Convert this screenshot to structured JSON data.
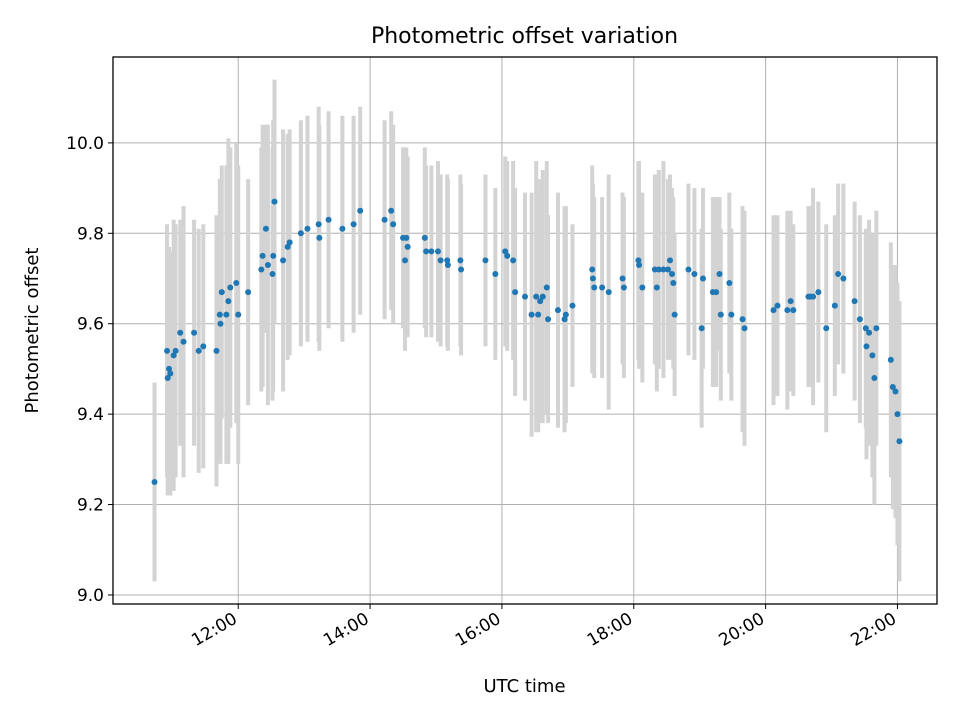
{
  "chart_data": {
    "type": "scatter",
    "title": "Photometric offset variation",
    "xlabel": "UTC time",
    "ylabel": "Photometric offset",
    "x_unit": "hour",
    "xlim": [
      10.1,
      22.6
    ],
    "ylim": [
      8.98,
      10.19
    ],
    "x_ticks": [
      12,
      14,
      16,
      18,
      20,
      22
    ],
    "x_tick_labels": [
      "12:00",
      "14:00",
      "16:00",
      "18:00",
      "20:00",
      "22:00"
    ],
    "y_ticks": [
      9.0,
      9.2,
      9.4,
      9.6,
      9.8,
      10.0
    ],
    "y_tick_labels": [
      "9.0",
      "9.2",
      "9.4",
      "9.6",
      "9.8",
      "10.0"
    ],
    "grid": true,
    "point_color": "#1f77b4",
    "errorbar_color": "#d3d3d3",
    "points": [
      {
        "x": 10.73,
        "y": 9.25,
        "err": 0.22
      },
      {
        "x": 10.92,
        "y": 9.54,
        "err": 0.28
      },
      {
        "x": 10.93,
        "y": 9.48,
        "err": 0.26
      },
      {
        "x": 10.95,
        "y": 9.5,
        "err": 0.27
      },
      {
        "x": 10.97,
        "y": 9.49,
        "err": 0.27
      },
      {
        "x": 11.02,
        "y": 9.53,
        "err": 0.3
      },
      {
        "x": 11.05,
        "y": 9.54,
        "err": 0.28
      },
      {
        "x": 11.12,
        "y": 9.58,
        "err": 0.25
      },
      {
        "x": 11.17,
        "y": 9.56,
        "err": 0.3
      },
      {
        "x": 11.33,
        "y": 9.58,
        "err": 0.25
      },
      {
        "x": 11.4,
        "y": 9.54,
        "err": 0.27
      },
      {
        "x": 11.47,
        "y": 9.55,
        "err": 0.27
      },
      {
        "x": 11.67,
        "y": 9.54,
        "err": 0.3
      },
      {
        "x": 11.72,
        "y": 9.62,
        "err": 0.3
      },
      {
        "x": 11.73,
        "y": 9.6,
        "err": 0.31
      },
      {
        "x": 11.75,
        "y": 9.67,
        "err": 0.28
      },
      {
        "x": 11.82,
        "y": 9.62,
        "err": 0.33
      },
      {
        "x": 11.85,
        "y": 9.65,
        "err": 0.36
      },
      {
        "x": 11.88,
        "y": 9.68,
        "err": 0.31
      },
      {
        "x": 11.97,
        "y": 9.69,
        "err": 0.31
      },
      {
        "x": 12.0,
        "y": 9.62,
        "err": 0.33
      },
      {
        "x": 12.15,
        "y": 9.67,
        "err": 0.25
      },
      {
        "x": 12.35,
        "y": 9.72,
        "err": 0.27
      },
      {
        "x": 12.37,
        "y": 9.75,
        "err": 0.29
      },
      {
        "x": 12.42,
        "y": 9.81,
        "err": 0.23
      },
      {
        "x": 12.45,
        "y": 9.73,
        "err": 0.31
      },
      {
        "x": 12.52,
        "y": 9.71,
        "err": 0.28
      },
      {
        "x": 12.53,
        "y": 9.75,
        "err": 0.3
      },
      {
        "x": 12.55,
        "y": 9.87,
        "err": 0.27
      },
      {
        "x": 12.68,
        "y": 9.74,
        "err": 0.29
      },
      {
        "x": 12.75,
        "y": 9.77,
        "err": 0.25
      },
      {
        "x": 12.78,
        "y": 9.78,
        "err": 0.25
      },
      {
        "x": 12.95,
        "y": 9.8,
        "err": 0.25
      },
      {
        "x": 13.05,
        "y": 9.81,
        "err": 0.25
      },
      {
        "x": 13.22,
        "y": 9.82,
        "err": 0.26
      },
      {
        "x": 13.23,
        "y": 9.79,
        "err": 0.25
      },
      {
        "x": 13.37,
        "y": 9.83,
        "err": 0.24
      },
      {
        "x": 13.58,
        "y": 9.81,
        "err": 0.25
      },
      {
        "x": 13.75,
        "y": 9.82,
        "err": 0.24
      },
      {
        "x": 13.85,
        "y": 9.85,
        "err": 0.23
      },
      {
        "x": 14.22,
        "y": 9.83,
        "err": 0.22
      },
      {
        "x": 14.32,
        "y": 9.85,
        "err": 0.22
      },
      {
        "x": 14.35,
        "y": 9.82,
        "err": 0.22
      },
      {
        "x": 14.5,
        "y": 9.79,
        "err": 0.2
      },
      {
        "x": 14.53,
        "y": 9.74,
        "err": 0.2
      },
      {
        "x": 14.55,
        "y": 9.79,
        "err": 0.2
      },
      {
        "x": 14.57,
        "y": 9.77,
        "err": 0.2
      },
      {
        "x": 14.83,
        "y": 9.79,
        "err": 0.2
      },
      {
        "x": 14.85,
        "y": 9.76,
        "err": 0.19
      },
      {
        "x": 14.93,
        "y": 9.76,
        "err": 0.19
      },
      {
        "x": 15.03,
        "y": 9.76,
        "err": 0.2
      },
      {
        "x": 15.07,
        "y": 9.74,
        "err": 0.19
      },
      {
        "x": 15.17,
        "y": 9.74,
        "err": 0.19
      },
      {
        "x": 15.18,
        "y": 9.73,
        "err": 0.19
      },
      {
        "x": 15.37,
        "y": 9.74,
        "err": 0.19
      },
      {
        "x": 15.38,
        "y": 9.72,
        "err": 0.19
      },
      {
        "x": 15.75,
        "y": 9.74,
        "err": 0.19
      },
      {
        "x": 15.9,
        "y": 9.71,
        "err": 0.19
      },
      {
        "x": 16.05,
        "y": 9.76,
        "err": 0.21
      },
      {
        "x": 16.08,
        "y": 9.75,
        "err": 0.21
      },
      {
        "x": 16.17,
        "y": 9.74,
        "err": 0.22
      },
      {
        "x": 16.2,
        "y": 9.67,
        "err": 0.23
      },
      {
        "x": 16.35,
        "y": 9.66,
        "err": 0.23
      },
      {
        "x": 16.45,
        "y": 9.62,
        "err": 0.27
      },
      {
        "x": 16.52,
        "y": 9.66,
        "err": 0.3
      },
      {
        "x": 16.55,
        "y": 9.62,
        "err": 0.26
      },
      {
        "x": 16.58,
        "y": 9.65,
        "err": 0.27
      },
      {
        "x": 16.62,
        "y": 9.66,
        "err": 0.28
      },
      {
        "x": 16.68,
        "y": 9.68,
        "err": 0.28
      },
      {
        "x": 16.7,
        "y": 9.61,
        "err": 0.23
      },
      {
        "x": 16.85,
        "y": 9.63,
        "err": 0.26
      },
      {
        "x": 16.95,
        "y": 9.61,
        "err": 0.25
      },
      {
        "x": 16.97,
        "y": 9.62,
        "err": 0.24
      },
      {
        "x": 17.07,
        "y": 9.64,
        "err": 0.18
      },
      {
        "x": 17.37,
        "y": 9.72,
        "err": 0.23
      },
      {
        "x": 17.38,
        "y": 9.7,
        "err": 0.21
      },
      {
        "x": 17.4,
        "y": 9.68,
        "err": 0.2
      },
      {
        "x": 17.52,
        "y": 9.68,
        "err": 0.2
      },
      {
        "x": 17.62,
        "y": 9.67,
        "err": 0.26
      },
      {
        "x": 17.83,
        "y": 9.7,
        "err": 0.19
      },
      {
        "x": 17.85,
        "y": 9.68,
        "err": 0.2
      },
      {
        "x": 18.07,
        "y": 9.74,
        "err": 0.22
      },
      {
        "x": 18.08,
        "y": 9.73,
        "err": 0.23
      },
      {
        "x": 18.13,
        "y": 9.68,
        "err": 0.21
      },
      {
        "x": 18.32,
        "y": 9.72,
        "err": 0.21
      },
      {
        "x": 18.35,
        "y": 9.68,
        "err": 0.23
      },
      {
        "x": 18.38,
        "y": 9.72,
        "err": 0.22
      },
      {
        "x": 18.45,
        "y": 9.72,
        "err": 0.24
      },
      {
        "x": 18.52,
        "y": 9.72,
        "err": 0.2
      },
      {
        "x": 18.55,
        "y": 9.74,
        "err": 0.19
      },
      {
        "x": 18.58,
        "y": 9.71,
        "err": 0.19
      },
      {
        "x": 18.6,
        "y": 9.69,
        "err": 0.19
      },
      {
        "x": 18.62,
        "y": 9.62,
        "err": 0.18
      },
      {
        "x": 18.83,
        "y": 9.72,
        "err": 0.19
      },
      {
        "x": 18.92,
        "y": 9.71,
        "err": 0.19
      },
      {
        "x": 19.03,
        "y": 9.59,
        "err": 0.22
      },
      {
        "x": 19.05,
        "y": 9.7,
        "err": 0.2
      },
      {
        "x": 19.2,
        "y": 9.67,
        "err": 0.21
      },
      {
        "x": 19.25,
        "y": 9.67,
        "err": 0.21
      },
      {
        "x": 19.3,
        "y": 9.71,
        "err": 0.17
      },
      {
        "x": 19.32,
        "y": 9.62,
        "err": 0.19
      },
      {
        "x": 19.45,
        "y": 9.69,
        "err": 0.2
      },
      {
        "x": 19.48,
        "y": 9.62,
        "err": 0.19
      },
      {
        "x": 19.65,
        "y": 9.61,
        "err": 0.25
      },
      {
        "x": 19.68,
        "y": 9.59,
        "err": 0.26
      },
      {
        "x": 20.12,
        "y": 9.63,
        "err": 0.21
      },
      {
        "x": 20.18,
        "y": 9.64,
        "err": 0.2
      },
      {
        "x": 20.33,
        "y": 9.63,
        "err": 0.22
      },
      {
        "x": 20.38,
        "y": 9.65,
        "err": 0.2
      },
      {
        "x": 20.42,
        "y": 9.63,
        "err": 0.19
      },
      {
        "x": 20.65,
        "y": 9.66,
        "err": 0.2
      },
      {
        "x": 20.68,
        "y": 9.66,
        "err": 0.2
      },
      {
        "x": 20.72,
        "y": 9.66,
        "err": 0.24
      },
      {
        "x": 20.8,
        "y": 9.67,
        "err": 0.2
      },
      {
        "x": 20.92,
        "y": 9.59,
        "err": 0.23
      },
      {
        "x": 21.05,
        "y": 9.64,
        "err": 0.2
      },
      {
        "x": 21.1,
        "y": 9.71,
        "err": 0.2
      },
      {
        "x": 21.18,
        "y": 9.7,
        "err": 0.21
      },
      {
        "x": 21.35,
        "y": 9.65,
        "err": 0.22
      },
      {
        "x": 21.43,
        "y": 9.61,
        "err": 0.23
      },
      {
        "x": 21.52,
        "y": 9.59,
        "err": 0.22
      },
      {
        "x": 21.53,
        "y": 9.55,
        "err": 0.25
      },
      {
        "x": 21.57,
        "y": 9.58,
        "err": 0.25
      },
      {
        "x": 21.62,
        "y": 9.53,
        "err": 0.27
      },
      {
        "x": 21.65,
        "y": 9.48,
        "err": 0.28
      },
      {
        "x": 21.68,
        "y": 9.59,
        "err": 0.26
      },
      {
        "x": 21.9,
        "y": 9.52,
        "err": 0.26
      },
      {
        "x": 21.93,
        "y": 9.46,
        "err": 0.27
      },
      {
        "x": 21.97,
        "y": 9.45,
        "err": 0.28
      },
      {
        "x": 22.0,
        "y": 9.4,
        "err": 0.29
      },
      {
        "x": 22.03,
        "y": 9.34,
        "err": 0.31
      }
    ]
  }
}
